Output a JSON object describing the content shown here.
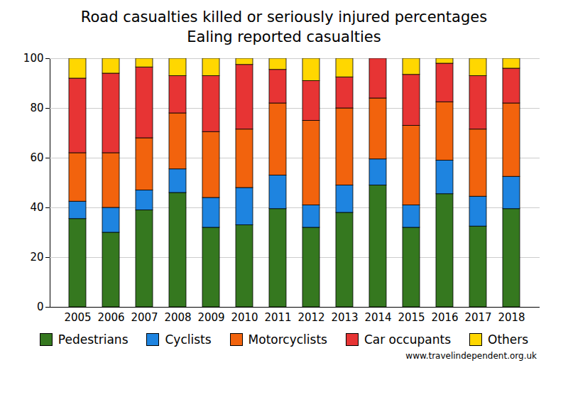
{
  "chart_data": {
    "type": "bar",
    "stacked": true,
    "title": "Road casualties killed or seriously injured percentages",
    "subtitle": "Ealing reported casualties",
    "caption": "www.travelindependent.org.uk",
    "categories": [
      "2005",
      "2006",
      "2007",
      "2008",
      "2009",
      "2010",
      "2011",
      "2012",
      "2013",
      "2014",
      "2015",
      "2016",
      "2017",
      "2018"
    ],
    "series": [
      {
        "name": "Pedestrians",
        "color": "#35781f",
        "values": [
          35.5,
          30,
          39,
          46,
          32,
          33,
          39.5,
          32,
          38,
          49,
          32,
          45.5,
          32.5,
          39.5
        ]
      },
      {
        "name": "Cyclists",
        "color": "#1e84e0",
        "values": [
          7,
          10,
          8,
          9.5,
          12,
          15,
          13.5,
          9,
          11,
          10.5,
          9,
          13.5,
          12,
          13
        ]
      },
      {
        "name": "Motorcyclists",
        "color": "#f2630d",
        "values": [
          19.5,
          22,
          21,
          22.5,
          26.5,
          23.5,
          29,
          34,
          31,
          24.5,
          32,
          23.5,
          27,
          29.5
        ]
      },
      {
        "name": "Car occupants",
        "color": "#e73434",
        "values": [
          30,
          32,
          28.5,
          15,
          22.5,
          26,
          13.5,
          16,
          12.5,
          16,
          20.5,
          15.5,
          21.5,
          14
        ]
      },
      {
        "name": "Others",
        "color": "#ffd700",
        "values": [
          8,
          6,
          3.5,
          7,
          7,
          2.5,
          4.5,
          9,
          7.5,
          0,
          6.5,
          2,
          7,
          4
        ]
      }
    ],
    "ylim": [
      0,
      100
    ],
    "yticks": [
      0,
      20,
      40,
      60,
      80,
      100
    ],
    "grid": true,
    "legend": "bottom"
  }
}
